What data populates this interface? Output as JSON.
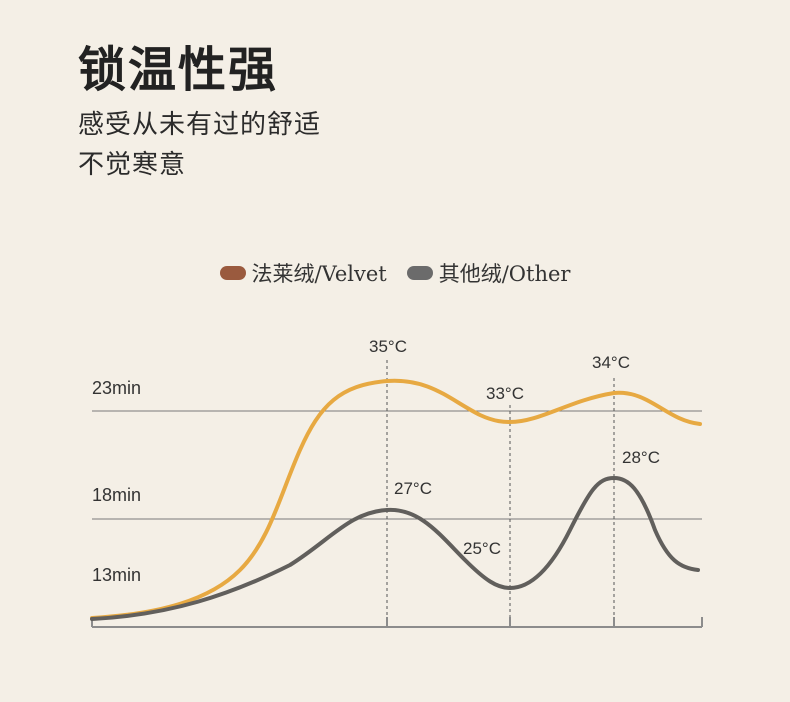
{
  "header": {
    "title": "锁温性强",
    "subtitle_line1": "感受从未有过的舒适",
    "subtitle_line2": "不觉寒意"
  },
  "legend": [
    {
      "label": "法莱绒/Velvet",
      "color": "#9a5a3e"
    },
    {
      "label": "其他绒/Other",
      "color": "#6b6b6b"
    }
  ],
  "colors": {
    "velvet_line": "#e7a942",
    "other_line": "#615f5c",
    "axis": "#8c8c8c",
    "grid": "#7a7a7a"
  },
  "chart_data": {
    "type": "line",
    "y_ticks": [
      {
        "label": "23min"
      },
      {
        "label": "18min"
      },
      {
        "label": "13min"
      }
    ],
    "series": [
      {
        "name": "法莱绒/Velvet",
        "annotations": [
          "35°C",
          "33°C",
          "34°C"
        ]
      },
      {
        "name": "其他绒/Other",
        "annotations": [
          "27°C",
          "25°C",
          "28°C"
        ]
      }
    ]
  }
}
